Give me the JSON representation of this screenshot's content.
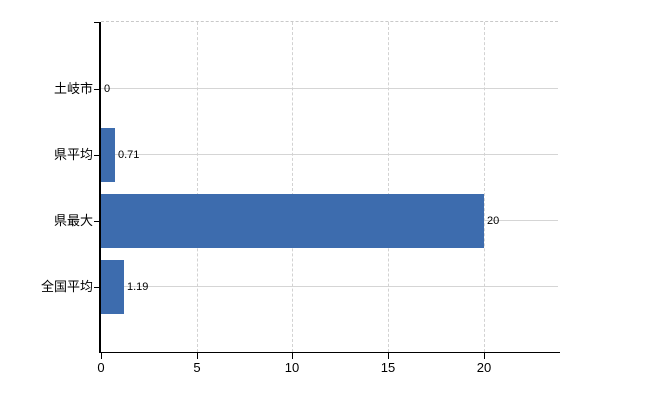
{
  "chart_data": {
    "type": "bar",
    "orientation": "horizontal",
    "title": "",
    "categories": [
      "土岐市",
      "県平均",
      "県最大",
      "全国平均"
    ],
    "values": [
      0,
      0.71,
      20,
      1.19
    ],
    "value_labels": [
      "0",
      "0.71",
      "20",
      "1.19"
    ],
    "xlim": [
      0,
      24
    ],
    "x_ticks": [
      0,
      5,
      10,
      15,
      20
    ],
    "x_tick_labels": [
      "0",
      "5",
      "10",
      "15",
      "20"
    ],
    "grid": true,
    "legend": false,
    "bar_color": "#3d6cae"
  },
  "colors": {
    "bar": "#3d6cae",
    "axis": "#000000",
    "h_gridline": "#d5d5d5",
    "v_gridline": "#d2d2d2",
    "top_border": "#c9c9c9",
    "background": "#ffffff",
    "text": "#000000"
  }
}
